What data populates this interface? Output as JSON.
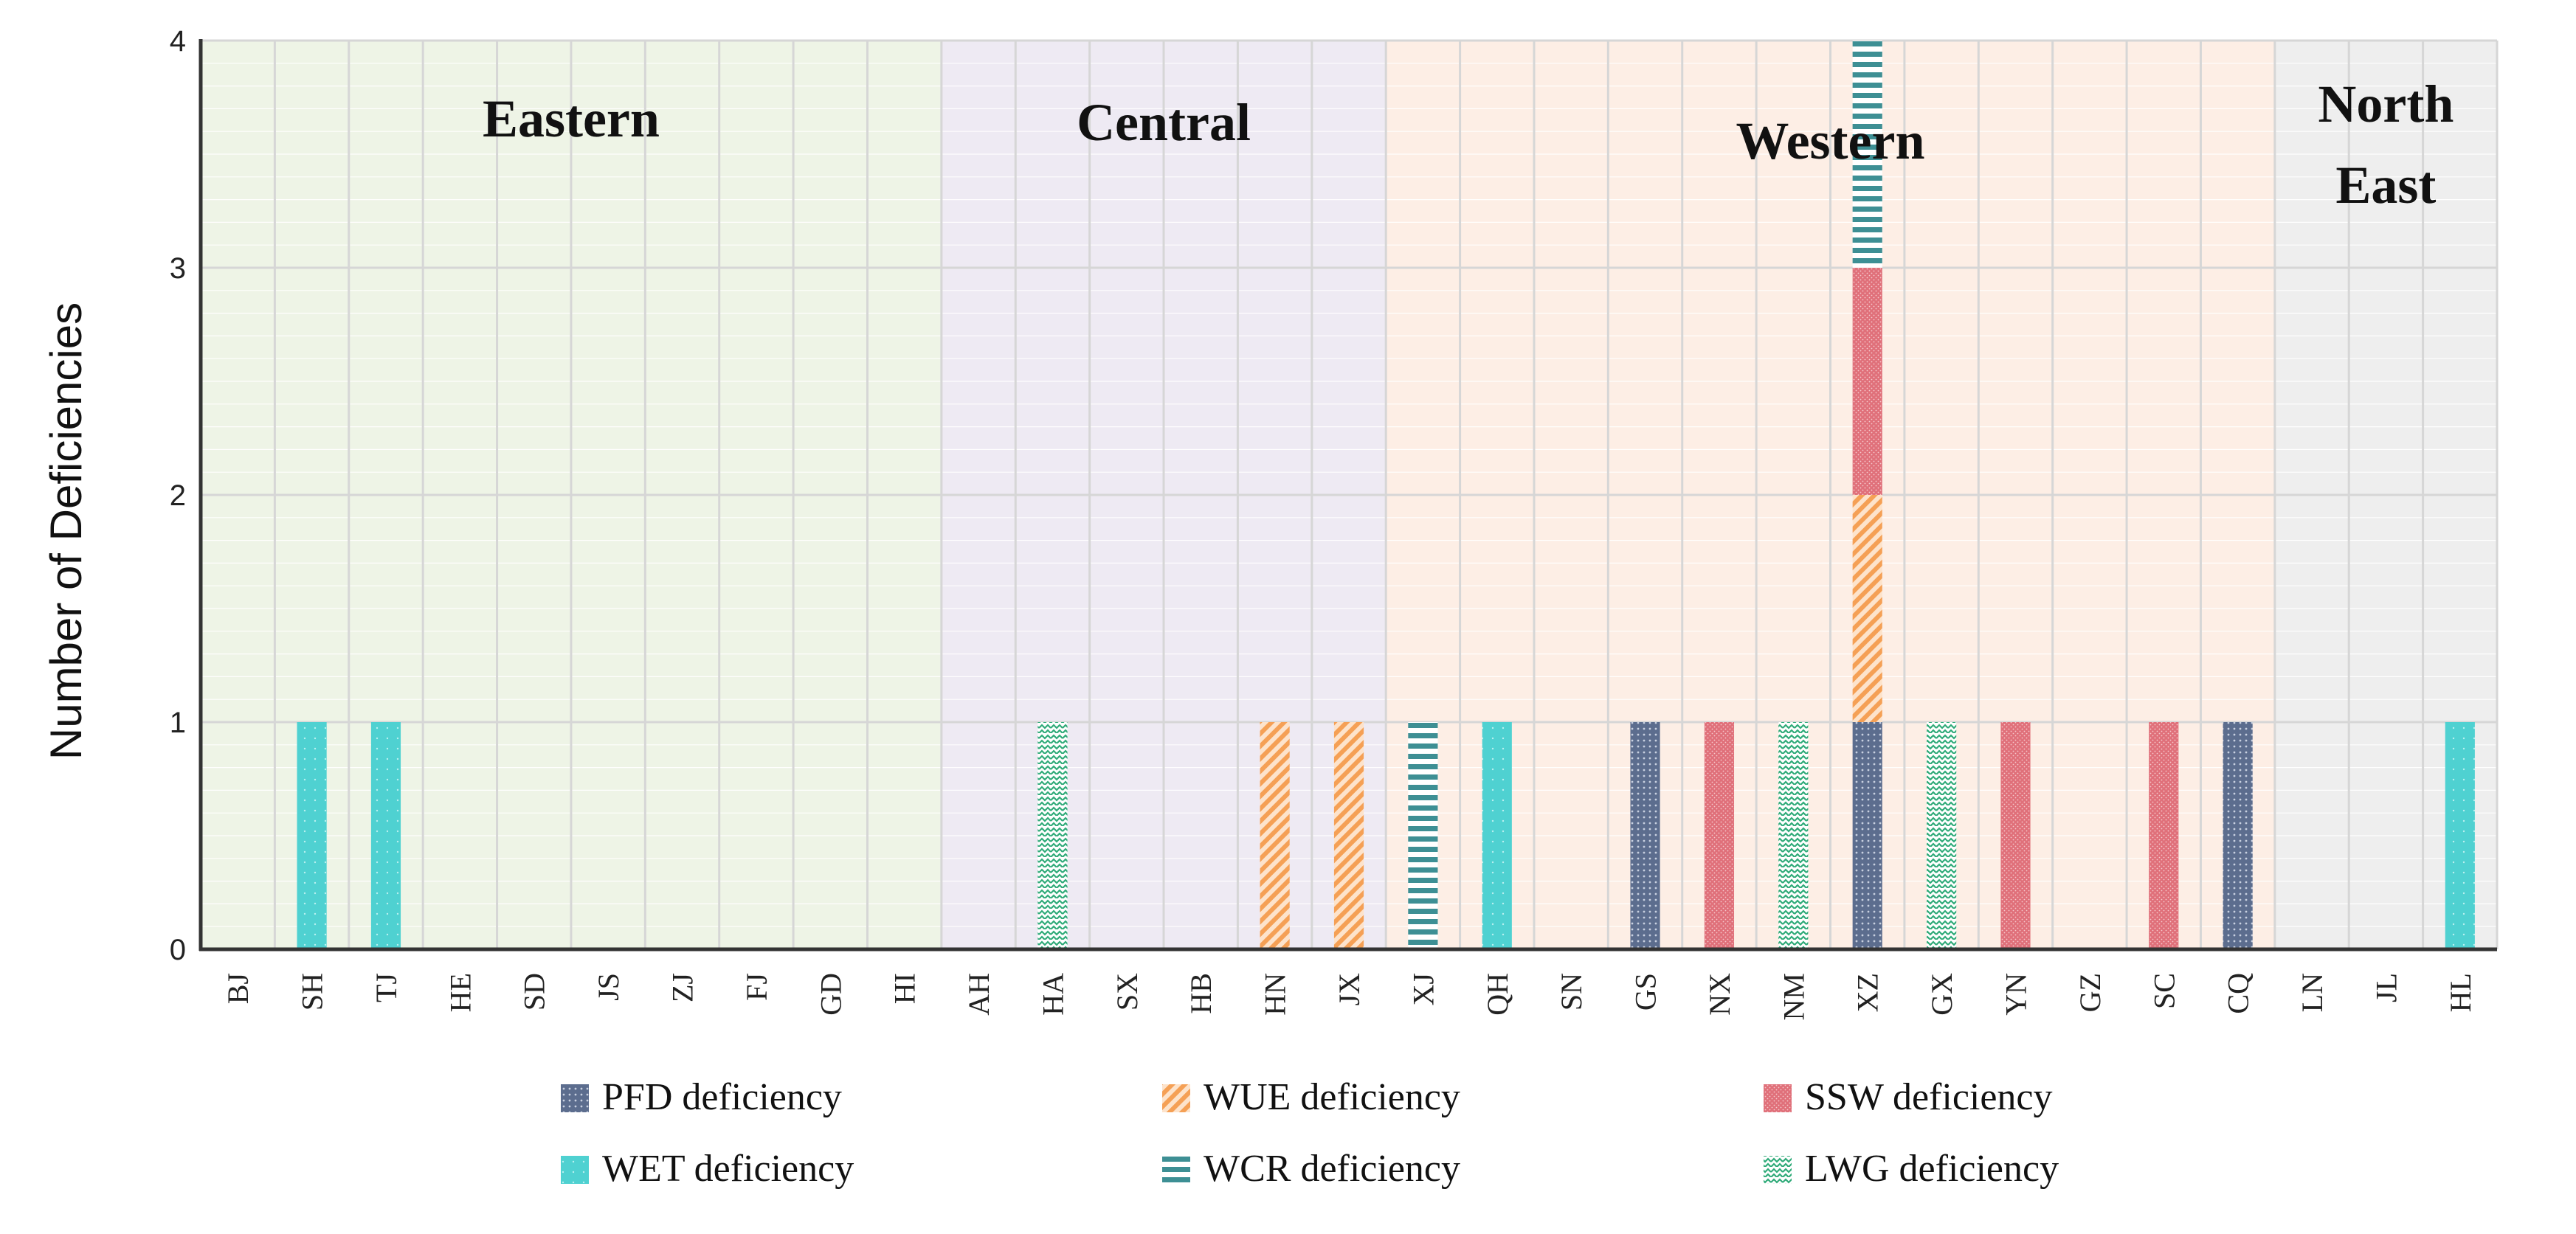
{
  "chart_data": {
    "type": "bar",
    "stacked": true,
    "title": "",
    "xlabel": "",
    "ylabel": "Number of Deficiencies",
    "ylim": [
      0,
      4
    ],
    "yticks": [
      "0",
      "1",
      "2",
      "3",
      "4"
    ],
    "grid": true,
    "legend_position": "bottom",
    "categories": [
      "BJ",
      "SH",
      "TJ",
      "HE",
      "SD",
      "JS",
      "ZJ",
      "FJ",
      "GD",
      "HI",
      "AH",
      "HA",
      "SX",
      "HB",
      "HN",
      "JX",
      "XJ",
      "QH",
      "SN",
      "GS",
      "NX",
      "NM",
      "XZ",
      "GX",
      "YN",
      "GZ",
      "SC",
      "CQ",
      "LN",
      "JL",
      "HL"
    ],
    "regions": [
      {
        "name": "Eastern",
        "label_lines": [
          "Eastern"
        ],
        "start": 0,
        "end": 9,
        "color": "#eef4e6"
      },
      {
        "name": "Central",
        "label_lines": [
          "Central"
        ],
        "start": 10,
        "end": 15,
        "color": "#eeeaf3"
      },
      {
        "name": "Western",
        "label_lines": [
          "Western"
        ],
        "start": 16,
        "end": 27,
        "color": "#fdeee5"
      },
      {
        "name": "North East",
        "label_lines": [
          "North",
          "East"
        ],
        "start": 28,
        "end": 30,
        "color": "#eeeeee"
      }
    ],
    "series": [
      {
        "name": "PFD deficiency",
        "pattern": "dots",
        "color": "#5c6d8e",
        "values": [
          0,
          0,
          0,
          0,
          0,
          0,
          0,
          0,
          0,
          0,
          0,
          0,
          0,
          0,
          0,
          0,
          0,
          0,
          0,
          1,
          0,
          0,
          1,
          0,
          0,
          0,
          0,
          1,
          0,
          0,
          0
        ]
      },
      {
        "name": "WUE deficiency",
        "pattern": "diagonal",
        "color": "#f5a055",
        "values": [
          0,
          0,
          0,
          0,
          0,
          0,
          0,
          0,
          0,
          0,
          0,
          0,
          0,
          0,
          1,
          1,
          0,
          0,
          0,
          0,
          0,
          0,
          1,
          0,
          0,
          0,
          0,
          0,
          0,
          0,
          0
        ]
      },
      {
        "name": "SSW deficiency",
        "pattern": "dense",
        "color": "#e0707a",
        "values": [
          0,
          0,
          0,
          0,
          0,
          0,
          0,
          0,
          0,
          0,
          0,
          0,
          0,
          0,
          0,
          0,
          0,
          0,
          0,
          0,
          1,
          0,
          1,
          0,
          1,
          0,
          1,
          0,
          0,
          0,
          0
        ]
      },
      {
        "name": "WET deficiency",
        "pattern": "solid",
        "color": "#4fd1d1",
        "values": [
          0,
          1,
          1,
          0,
          0,
          0,
          0,
          0,
          0,
          0,
          0,
          0,
          0,
          0,
          0,
          0,
          0,
          1,
          0,
          0,
          0,
          0,
          0,
          0,
          0,
          0,
          0,
          0,
          0,
          0,
          1
        ]
      },
      {
        "name": "WCR deficiency",
        "pattern": "hstripe",
        "color": "#3d8f94",
        "values": [
          0,
          0,
          0,
          0,
          0,
          0,
          0,
          0,
          0,
          0,
          0,
          0,
          0,
          0,
          0,
          0,
          1,
          0,
          0,
          0,
          0,
          0,
          1,
          0,
          0,
          0,
          0,
          0,
          0,
          0,
          0
        ]
      },
      {
        "name": "LWG deficiency",
        "pattern": "zigzag",
        "color": "#2eaa78",
        "values": [
          0,
          0,
          0,
          0,
          0,
          0,
          0,
          0,
          0,
          0,
          0,
          1,
          0,
          0,
          0,
          0,
          0,
          0,
          0,
          0,
          0,
          1,
          0,
          1,
          0,
          0,
          0,
          0,
          0,
          0,
          0
        ]
      }
    ]
  }
}
